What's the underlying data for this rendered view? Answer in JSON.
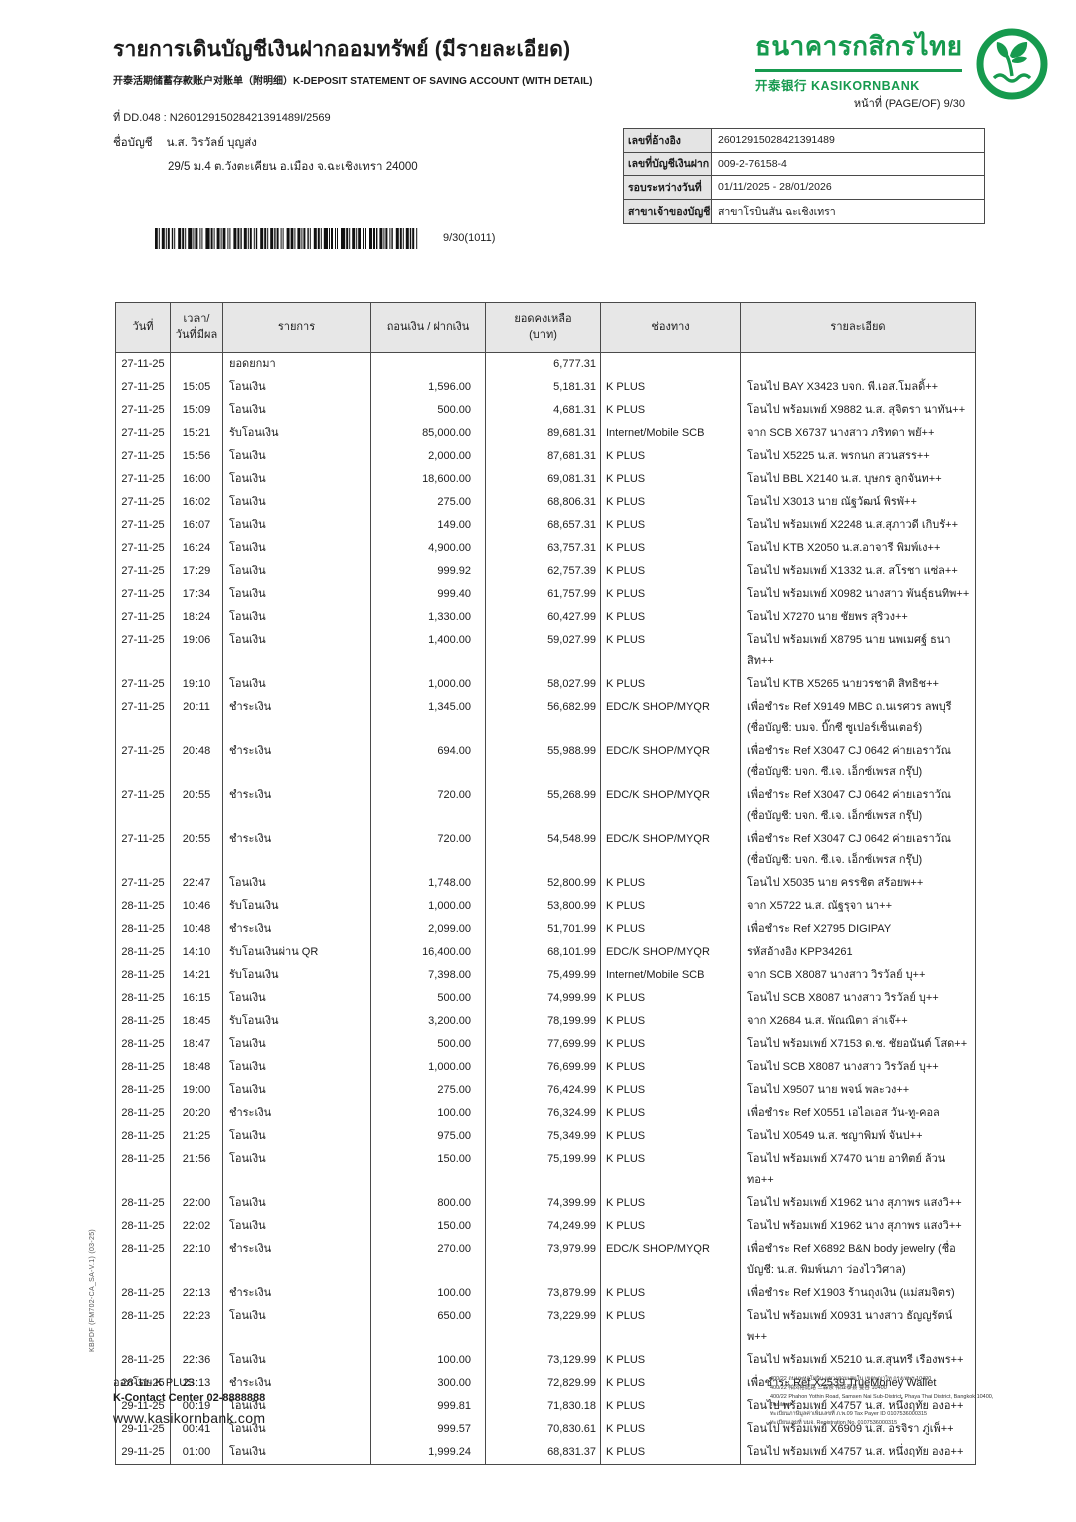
{
  "colors": {
    "brand_green": "#169a4e",
    "table_header_bg": "#e7e7e7",
    "border": "#4a4a4a"
  },
  "header": {
    "title": "รายการเดินบัญชีเงินฝากออมทรัพย์ (มีรายละเอียด)",
    "subtitle": "开泰活期储蓄存款账户对账单（附明细）K-DEPOSIT STATEMENT OF SAVING ACCOUNT (WITH DETAIL)",
    "doc_line": "ที่ DD.048 : N26012915028421391489I/2569",
    "page_label": "หน้าที่ (PAGE/OF) 9/30"
  },
  "bank": {
    "name_th": "ธนาคารกสิกรไทย",
    "name_en": "开泰银行 KASIKORNBANK",
    "logo_icon": "rice-sprout-circle-icon"
  },
  "account": {
    "name_label": "ชื่อบัญชี",
    "name": "น.ส. วิรวัลย์ บุญส่ง",
    "address": "29/5 ม.4 ต.วังตะเคียน อ.เมือง จ.ฉะเชิงเทรา 24000"
  },
  "info_box": {
    "rows": [
      {
        "label": "เลขที่อ้างอิง",
        "value": "26012915028421391489"
      },
      {
        "label": "เลขที่บัญชีเงินฝาก",
        "value": "009-2-76158-4"
      },
      {
        "label": "รอบระหว่างวันที่",
        "value": "01/11/2025 - 28/01/2026"
      },
      {
        "label": "สาขาเจ้าของบัญชี",
        "value": "สาขาโรบินสัน ฉะเชิงเทรา"
      }
    ]
  },
  "barcode_caption": "9/30(1011)",
  "table": {
    "headers": [
      {
        "lines": [
          "วันที่"
        ]
      },
      {
        "lines": [
          "เวลา/",
          "วันที่มีผล"
        ]
      },
      {
        "lines": [
          "รายการ"
        ]
      },
      {
        "lines": [
          "ถอนเงิน / ฝากเงิน"
        ]
      },
      {
        "lines": [
          "ยอดคงเหลือ",
          "(บาท)"
        ]
      },
      {
        "lines": [
          "ช่องทาง"
        ]
      },
      {
        "lines": [
          "รายละเอียด"
        ]
      }
    ],
    "rows": [
      [
        "27-11-25",
        "",
        "ยอดยกมา",
        "",
        "6,777.31",
        "",
        ""
      ],
      [
        "27-11-25",
        "15:05",
        "โอนเงิน",
        "1,596.00",
        "5,181.31",
        "K PLUS",
        "โอนไป BAY X3423 บจก. พี.เอส.โมลดิ้++"
      ],
      [
        "27-11-25",
        "15:09",
        "โอนเงิน",
        "500.00",
        "4,681.31",
        "K PLUS",
        "โอนไป พร้อมเพย์ X9882 น.ส. สุจิตรา นาทัน++"
      ],
      [
        "27-11-25",
        "15:21",
        "รับโอนเงิน",
        "85,000.00",
        "89,681.31",
        "Internet/Mobile SCB",
        "จาก SCB X6737 นางสาว ภริทดา พยั++"
      ],
      [
        "27-11-25",
        "15:56",
        "โอนเงิน",
        "2,000.00",
        "87,681.31",
        "K PLUS",
        "โอนไป X5225 น.ส. พรกนก สวนสรร++"
      ],
      [
        "27-11-25",
        "16:00",
        "โอนเงิน",
        "18,600.00",
        "69,081.31",
        "K PLUS",
        "โอนไป BBL X2140 น.ส. บุษกร ลูกจันท++"
      ],
      [
        "27-11-25",
        "16:02",
        "โอนเงิน",
        "275.00",
        "68,806.31",
        "K PLUS",
        "โอนไป X3013 นาย ณัฐวัฒน์ พิรพั++"
      ],
      [
        "27-11-25",
        "16:07",
        "โอนเงิน",
        "149.00",
        "68,657.31",
        "K PLUS",
        "โอนไป พร้อมเพย์ X2248 น.ส.สุภาวดี เกิบรั++"
      ],
      [
        "27-11-25",
        "16:24",
        "โอนเงิน",
        "4,900.00",
        "63,757.31",
        "K PLUS",
        "โอนไป KTB X2050 น.ส.อาจารี พิมพ์เง++"
      ],
      [
        "27-11-25",
        "17:29",
        "โอนเงิน",
        "999.92",
        "62,757.39",
        "K PLUS",
        "โอนไป พร้อมเพย์ X1332 น.ส. สโรชา แซ่ล++"
      ],
      [
        "27-11-25",
        "17:34",
        "โอนเงิน",
        "999.40",
        "61,757.99",
        "K PLUS",
        "โอนไป พร้อมเพย์ X0982 นางสาว พันธุ์ธนทิพ++"
      ],
      [
        "27-11-25",
        "18:24",
        "โอนเงิน",
        "1,330.00",
        "60,427.99",
        "K PLUS",
        "โอนไป X7270 นาย ชัยพร สุริวง++"
      ],
      [
        "27-11-25",
        "19:06",
        "โอนเงิน",
        "1,400.00",
        "59,027.99",
        "K PLUS",
        "โอนไป พร้อมเพย์ X8795 นาย นพเมศฐ์ ธนาสิท++"
      ],
      [
        "27-11-25",
        "19:10",
        "โอนเงิน",
        "1,000.00",
        "58,027.99",
        "K PLUS",
        "โอนไป KTB X5265 นายวรชาติ สิทธิช++"
      ],
      [
        "27-11-25",
        "20:11",
        "ชำระเงิน",
        "1,345.00",
        "56,682.99",
        "EDC/K SHOP/MYQR",
        "เพื่อชำระ Ref X9149 MBC ถ.นเรศวร ลพบุรี (ชื่อบัญชี: บมจ. บิ๊กซี ซูเปอร์เซ็นเตอร์)"
      ],
      [
        "27-11-25",
        "20:48",
        "ชำระเงิน",
        "694.00",
        "55,988.99",
        "EDC/K SHOP/MYQR",
        "เพื่อชำระ Ref X3047 CJ 0642 ค่ายเอราวัณ (ชื่อบัญชี: บจก. ซี.เจ. เอ็กซ์เพรส กรุ๊ป)"
      ],
      [
        "27-11-25",
        "20:55",
        "ชำระเงิน",
        "720.00",
        "55,268.99",
        "EDC/K SHOP/MYQR",
        "เพื่อชำระ Ref X3047 CJ 0642 ค่ายเอราวัณ (ชื่อบัญชี: บจก. ซี.เจ. เอ็กซ์เพรส กรุ๊ป)"
      ],
      [
        "27-11-25",
        "20:55",
        "ชำระเงิน",
        "720.00",
        "54,548.99",
        "EDC/K SHOP/MYQR",
        "เพื่อชำระ Ref X3047 CJ 0642 ค่ายเอราวัณ (ชื่อบัญชี: บจก. ซี.เจ. เอ็กซ์เพรส กรุ๊ป)"
      ],
      [
        "27-11-25",
        "22:47",
        "โอนเงิน",
        "1,748.00",
        "52,800.99",
        "K PLUS",
        "โอนไป X5035 นาย ครรชิต สร้อยพ++"
      ],
      [
        "28-11-25",
        "10:46",
        "รับโอนเงิน",
        "1,000.00",
        "53,800.99",
        "K PLUS",
        "จาก X5722 น.ส. ณัฐรุจา นา++"
      ],
      [
        "28-11-25",
        "10:48",
        "ชำระเงิน",
        "2,099.00",
        "51,701.99",
        "K PLUS",
        "เพื่อชำระ Ref X2795 DIGIPAY"
      ],
      [
        "28-11-25",
        "14:10",
        "รับโอนเงินผ่าน QR",
        "16,400.00",
        "68,101.99",
        "EDC/K SHOP/MYQR",
        "รหัสอ้างอิง KPP34261"
      ],
      [
        "28-11-25",
        "14:21",
        "รับโอนเงิน",
        "7,398.00",
        "75,499.99",
        "Internet/Mobile SCB",
        "จาก SCB X8087 นางสาว วิรวัลย์ บุ++"
      ],
      [
        "28-11-25",
        "16:15",
        "โอนเงิน",
        "500.00",
        "74,999.99",
        "K PLUS",
        "โอนไป SCB X8087 นางสาว วิรวัลย์ บุ++"
      ],
      [
        "28-11-25",
        "18:45",
        "รับโอนเงิน",
        "3,200.00",
        "78,199.99",
        "K PLUS",
        "จาก X2684 น.ส. พัณณิตา ล่าเจ๊++"
      ],
      [
        "28-11-25",
        "18:47",
        "โอนเงิน",
        "500.00",
        "77,699.99",
        "K PLUS",
        "โอนไป พร้อมเพย์ X7153 ด.ช. ชัยอนันต์ โสด++"
      ],
      [
        "28-11-25",
        "18:48",
        "โอนเงิน",
        "1,000.00",
        "76,699.99",
        "K PLUS",
        "โอนไป SCB X8087 นางสาว วิรวัลย์ บุ++"
      ],
      [
        "28-11-25",
        "19:00",
        "โอนเงิน",
        "275.00",
        "76,424.99",
        "K PLUS",
        "โอนไป X9507 นาย พจน์ พละวง++"
      ],
      [
        "28-11-25",
        "20:20",
        "ชำระเงิน",
        "100.00",
        "76,324.99",
        "K PLUS",
        "เพื่อชำระ Ref X0551 เอไอเอส วัน-ทู-คอล"
      ],
      [
        "28-11-25",
        "21:25",
        "โอนเงิน",
        "975.00",
        "75,349.99",
        "K PLUS",
        "โอนไป X0549 น.ส. ชญาพิมพ์ จันป++"
      ],
      [
        "28-11-25",
        "21:56",
        "โอนเงิน",
        "150.00",
        "75,199.99",
        "K PLUS",
        "โอนไป พร้อมเพย์ X7470 นาย อาทิตย์ ล้วนทอ++"
      ],
      [
        "28-11-25",
        "22:00",
        "โอนเงิน",
        "800.00",
        "74,399.99",
        "K PLUS",
        "โอนไป พร้อมเพย์ X1962 นาง สุภาพร แสงวิ++"
      ],
      [
        "28-11-25",
        "22:02",
        "โอนเงิน",
        "150.00",
        "74,249.99",
        "K PLUS",
        "โอนไป พร้อมเพย์ X1962 นาง สุภาพร แสงวิ++"
      ],
      [
        "28-11-25",
        "22:10",
        "ชำระเงิน",
        "270.00",
        "73,979.99",
        "EDC/K SHOP/MYQR",
        "เพื่อชำระ Ref X6892 B&N body jewelry (ชื่อบัญชี: น.ส. พิมพ์นภา ว่องไววิศาล)"
      ],
      [
        "28-11-25",
        "22:13",
        "ชำระเงิน",
        "100.00",
        "73,879.99",
        "K PLUS",
        "เพื่อชำระ Ref X1903 ร้านถุงเงิน (แม่สมจิตร)"
      ],
      [
        "28-11-25",
        "22:23",
        "โอนเงิน",
        "650.00",
        "73,229.99",
        "K PLUS",
        "โอนไป พร้อมเพย์ X0931 นางสาว ธัญญรัตน์ พ++"
      ],
      [
        "28-11-25",
        "22:36",
        "โอนเงิน",
        "100.00",
        "73,129.99",
        "K PLUS",
        "โอนไป พร้อมเพย์ X5210 น.ส.สุนทรี เรืองพร++"
      ],
      [
        "28-11-25",
        "23:13",
        "ชำระเงิน",
        "300.00",
        "72,829.99",
        "K PLUS",
        "เพื่อชำระ Ref X2539 TrueMoney Wallet"
      ],
      [
        "29-11-25",
        "00:19",
        "โอนเงิน",
        "999.81",
        "71,830.18",
        "K PLUS",
        "โอนไป พร้อมเพย์ X4757 น.ส. หนึ่งฤทัย องอ++"
      ],
      [
        "29-11-25",
        "00:41",
        "โอนเงิน",
        "999.57",
        "70,830.61",
        "K PLUS",
        "โอนไป พร้อมเพย์ X6909 น.ส. อรจิรา ภู่เพ็++"
      ],
      [
        "29-11-25",
        "01:00",
        "โอนเงิน",
        "1,999.24",
        "68,831.37",
        "K PLUS",
        "โอนไป พร้อมเพย์ X4757 น.ส. หนึ่งฤทัย องอ++"
      ]
    ]
  },
  "footer": {
    "issued_by": "ออกโดย K PLUS",
    "contact": "K-Contact Center 02-8888888",
    "website": "www.kasikornbank.com",
    "address_lines": [
      "400/22 ถนนพหลโยธิน แขวงสามเสนใน เขตพญาไท กรุงเทพฯ 10400",
      "400/22 帕凤裕庭路 三森奈 帕亚泰县 曼谷 10400",
      "400/22 Phahon Yothin Road, Samsen Nai Sub-District, Phaya Thai District, Bangkok 10400, Thailand",
      "ทะเบียนภาษีมูลค่าเพิ่มเลขที่ ภ.พ.09  Tax Payer ID 0107536000315",
      "ทะเบียนเลขที่ บมจ.  Registration No. 0107536000315"
    ]
  },
  "side_text": "KBPDF (FM702-CA_SA-V.1) (03-25)"
}
